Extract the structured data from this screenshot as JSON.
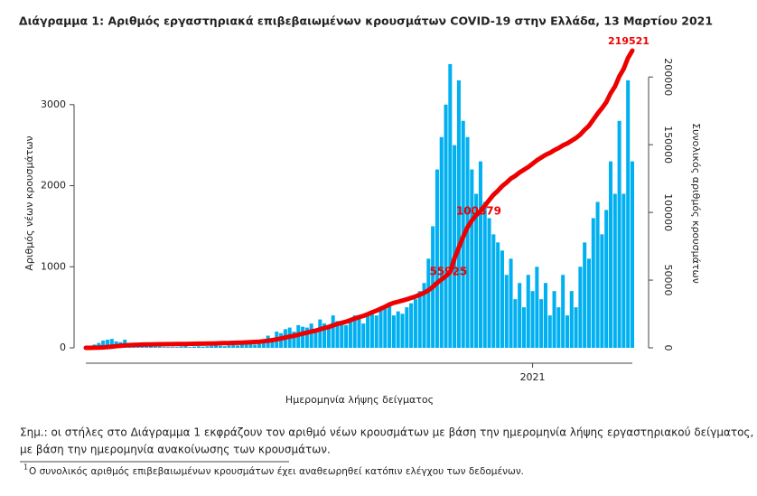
{
  "chart_data": {
    "type": "bar-line",
    "title": "Διάγραμμα 1: Αριθμός εργαστηριακά επιβεβαιωμένων κρουσμάτων COVID-19 στην Ελλάδα, 13 Μαρτίου 2021",
    "x_label": "Ημερομηνία λήψης δείγματος",
    "y_label": "Αριθμός νέων κρουσμάτων",
    "y2_label": "Συνολικός αριθμός κρουσμάτων",
    "categories": [
      null,
      null,
      null,
      null,
      null,
      null,
      null,
      null,
      null,
      null,
      null,
      null,
      null,
      null,
      null,
      null,
      null,
      null,
      null,
      null,
      null,
      null,
      null,
      null,
      null,
      null,
      null,
      null,
      null,
      null,
      null,
      null,
      null,
      null,
      null,
      null,
      null,
      null,
      null,
      null,
      null,
      null,
      null,
      null,
      null,
      null,
      null,
      null,
      null,
      null,
      null,
      null,
      null,
      null,
      null,
      null,
      null,
      null,
      null,
      null,
      null,
      null,
      null,
      null,
      null,
      null,
      null,
      null,
      null,
      null,
      null,
      null,
      null,
      null,
      null,
      null,
      null,
      null,
      null,
      null,
      null,
      null,
      null,
      null,
      null,
      null,
      null,
      null,
      null,
      null,
      null,
      null,
      null,
      null,
      null,
      null,
      null,
      null,
      null,
      null,
      null,
      null,
      null,
      "2021",
      null,
      null,
      null,
      null,
      null,
      null,
      null,
      null,
      null,
      null,
      null,
      null,
      null,
      null,
      null,
      null,
      null,
      null,
      null,
      null,
      null,
      null,
      null
    ],
    "ylim": [
      0,
      3700
    ],
    "yticks": [
      0,
      1000,
      2000,
      3000
    ],
    "y2lim": [
      0,
      221500
    ],
    "y2ticks": [
      0,
      50000,
      100000,
      150000,
      200000
    ],
    "series": [
      {
        "name": "Νέα κρούσματα",
        "color": "#00b0f0",
        "kind": "bar",
        "values": [
          5,
          20,
          40,
          60,
          90,
          100,
          110,
          80,
          70,
          100,
          60,
          50,
          40,
          30,
          20,
          20,
          15,
          15,
          10,
          10,
          10,
          10,
          15,
          20,
          10,
          15,
          20,
          15,
          20,
          25,
          30,
          25,
          20,
          30,
          40,
          30,
          40,
          50,
          60,
          40,
          70,
          100,
          150,
          120,
          200,
          180,
          230,
          250,
          200,
          280,
          260,
          250,
          300,
          200,
          350,
          300,
          250,
          400,
          330,
          300,
          280,
          350,
          400,
          380,
          300,
          410,
          450,
          400,
          500,
          480,
          550,
          400,
          450,
          420,
          500,
          550,
          600,
          700,
          800,
          1100,
          1500,
          2200,
          2600,
          3000,
          3500,
          2500,
          3300,
          2800,
          2600,
          2200,
          1900,
          2300,
          1800,
          1600,
          1400,
          1300,
          1200,
          900,
          1100,
          600,
          800,
          500,
          900,
          700,
          1000,
          600,
          800,
          400,
          700,
          500,
          900,
          400,
          700,
          500,
          1000,
          1300,
          1100,
          1600,
          1800,
          1400,
          1700,
          2300,
          1900,
          2800,
          1900,
          3300,
          2300
        ]
      },
      {
        "name": "Συνολικός αριθμός",
        "color": "#ee0000",
        "kind": "line",
        "axis": "y2",
        "values": [
          0,
          10,
          50,
          150,
          350,
          600,
          900,
          1200,
          1500,
          1800,
          2000,
          2150,
          2300,
          2400,
          2480,
          2550,
          2600,
          2650,
          2700,
          2730,
          2760,
          2800,
          2850,
          2900,
          2950,
          2990,
          3040,
          3100,
          3150,
          3200,
          3300,
          3400,
          3450,
          3550,
          3650,
          3750,
          3850,
          4000,
          4200,
          4350,
          4550,
          4850,
          5300,
          5700,
          6300,
          6900,
          7600,
          8300,
          8900,
          9700,
          10500,
          11200,
          12100,
          12700,
          13700,
          14600,
          15400,
          16600,
          17600,
          18500,
          19300,
          20400,
          21600,
          22700,
          23600,
          24800,
          26200,
          27400,
          28900,
          30300,
          32000,
          33200,
          34000,
          34900,
          35800,
          36800,
          37900,
          39200,
          40600,
          42500,
          45000,
          48000,
          50500,
          53000,
          55925,
          66000,
          74000,
          82000,
          89000,
          94000,
          98000,
          100879,
          105000,
          109000,
          113000,
          116000,
          119500,
          122000,
          125000,
          127000,
          129500,
          131500,
          133500,
          136000,
          138500,
          140500,
          142500,
          144000,
          146000,
          147500,
          149500,
          151000,
          153000,
          155000,
          157500,
          161000,
          164000,
          168500,
          173000,
          177000,
          181500,
          188000,
          193000,
          200500,
          206000,
          214000,
          219521
        ],
        "value_labels": [
          null,
          null,
          null,
          null,
          null,
          null,
          null,
          null,
          null,
          null,
          null,
          null,
          null,
          null,
          null,
          null,
          null,
          null,
          null,
          null,
          null,
          null,
          null,
          null,
          null,
          null,
          null,
          null,
          null,
          null,
          null,
          null,
          null,
          null,
          null,
          null,
          null,
          null,
          null,
          null,
          null,
          null,
          null,
          null,
          null,
          null,
          null,
          null,
          null,
          null,
          null,
          null,
          null,
          null,
          null,
          null,
          null,
          null,
          null,
          null,
          null,
          null,
          null,
          null,
          null,
          null,
          null,
          null,
          null,
          null,
          null,
          null,
          null,
          null,
          null,
          null,
          null,
          null,
          null,
          null,
          null,
          null,
          null,
          null,
          "55925",
          null,
          null,
          null,
          null,
          null,
          null,
          "100879",
          null,
          null,
          null,
          null,
          null,
          null,
          null,
          null,
          null,
          null,
          null,
          null,
          null,
          null,
          null,
          null,
          null,
          null,
          null,
          null,
          null,
          null,
          null,
          null,
          null,
          null,
          null,
          null,
          null,
          null,
          null,
          null,
          null,
          null,
          "219521"
        ]
      }
    ]
  },
  "note": "Σημ.: οι στήλες στο Διάγραμμα 1 εκφράζουν τον αριθμό νέων κρουσμάτων με βάση την ημερομηνία λήψης εργαστηριακού δείγματος, και όχι με βάση την ημερομηνία ανακοίνωσης των κρουσμάτων.",
  "note_lines": [
    "Σημ.: οι στήλες στο Διάγραμμα 1 εκφράζουν τον αριθμό νέων κρουσμάτων με βάση την ημερομηνία λήψης εργαστηριακού δείγματος, και όχι",
    "με βάση την ημερομηνία ανακοίνωσης των κρουσμάτων."
  ],
  "footnote": {
    "mark": "1",
    "text": "Ο συνολικός αριθμός επιβεβαιωμένων κρουσμάτων έχει αναθεωρηθεί κατόπιν ελέγχου των δεδομένων."
  }
}
